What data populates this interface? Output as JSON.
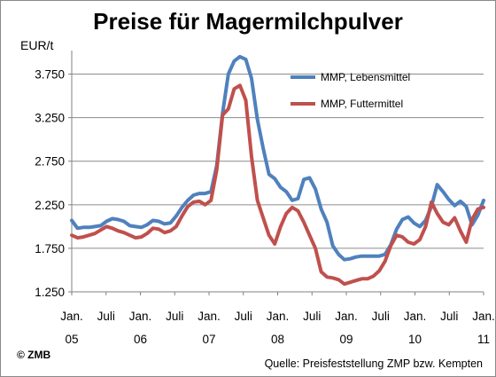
{
  "chart_data": {
    "type": "line",
    "title": "Preise für Magermilchpulver",
    "ylabel": "EUR/t",
    "ylim": [
      1250,
      4000
    ],
    "y_ticks": [
      "1.250",
      "1.750",
      "2.250",
      "2.750",
      "3.250",
      "3.750"
    ],
    "y_tick_values": [
      1250,
      1750,
      2250,
      2750,
      3250,
      3750
    ],
    "x_ticks": [
      {
        "line1": "Jan.",
        "line2": "05",
        "month": 0
      },
      {
        "line1": "Juli",
        "line2": "",
        "month": 6
      },
      {
        "line1": "Jan.",
        "line2": "06",
        "month": 12
      },
      {
        "line1": "Juli",
        "line2": "",
        "month": 18
      },
      {
        "line1": "Jan.",
        "line2": "07",
        "month": 24
      },
      {
        "line1": "Juli",
        "line2": "",
        "month": 30
      },
      {
        "line1": "Jan.",
        "line2": "08",
        "month": 36
      },
      {
        "line1": "Juli",
        "line2": "",
        "month": 42
      },
      {
        "line1": "Jan.",
        "line2": "09",
        "month": 48
      },
      {
        "line1": "Juli",
        "line2": "",
        "month": 54
      },
      {
        "line1": "Jan.",
        "line2": "10",
        "month": 60
      },
      {
        "line1": "Juli",
        "line2": "",
        "month": 66
      },
      {
        "line1": "Jan.",
        "line2": "11",
        "month": 72
      }
    ],
    "grid": "horizontal",
    "legend_position": "top-right",
    "series": [
      {
        "name": "MMP, Lebensmittel",
        "color": "#4f81bd",
        "values": [
          2070,
          1980,
          1990,
          1990,
          2000,
          2010,
          2060,
          2090,
          2080,
          2060,
          2010,
          2000,
          1990,
          2020,
          2070,
          2060,
          2030,
          2040,
          2120,
          2220,
          2300,
          2360,
          2380,
          2380,
          2400,
          2700,
          3300,
          3750,
          3900,
          3950,
          3920,
          3700,
          3230,
          2900,
          2600,
          2550,
          2450,
          2400,
          2300,
          2320,
          2540,
          2560,
          2430,
          2200,
          2050,
          1780,
          1680,
          1620,
          1630,
          1650,
          1660,
          1660,
          1660,
          1660,
          1680,
          1790,
          1970,
          2080,
          2110,
          2040,
          2000,
          2070,
          2230,
          2480,
          2400,
          2310,
          2240,
          2290,
          2230,
          2020,
          2130,
          2300
        ]
      },
      {
        "name": "MMP, Futtermittel",
        "color": "#c0504d",
        "values": [
          1900,
          1870,
          1880,
          1900,
          1920,
          1960,
          2000,
          1980,
          1950,
          1930,
          1900,
          1870,
          1880,
          1920,
          1980,
          1970,
          1930,
          1950,
          2000,
          2120,
          2230,
          2280,
          2290,
          2250,
          2300,
          2650,
          3280,
          3350,
          3580,
          3620,
          3450,
          2800,
          2300,
          2100,
          1900,
          1800,
          2000,
          2150,
          2220,
          2180,
          2050,
          1900,
          1750,
          1480,
          1420,
          1410,
          1390,
          1340,
          1360,
          1380,
          1400,
          1400,
          1430,
          1490,
          1600,
          1780,
          1900,
          1880,
          1820,
          1800,
          1850,
          2000,
          2280,
          2150,
          2050,
          2020,
          2100,
          1950,
          1820,
          2080,
          2200,
          2220
        ]
      }
    ]
  },
  "copyright": "© ZMB",
  "source": "Quelle: Preisfeststellung ZMP bzw. Kempten"
}
